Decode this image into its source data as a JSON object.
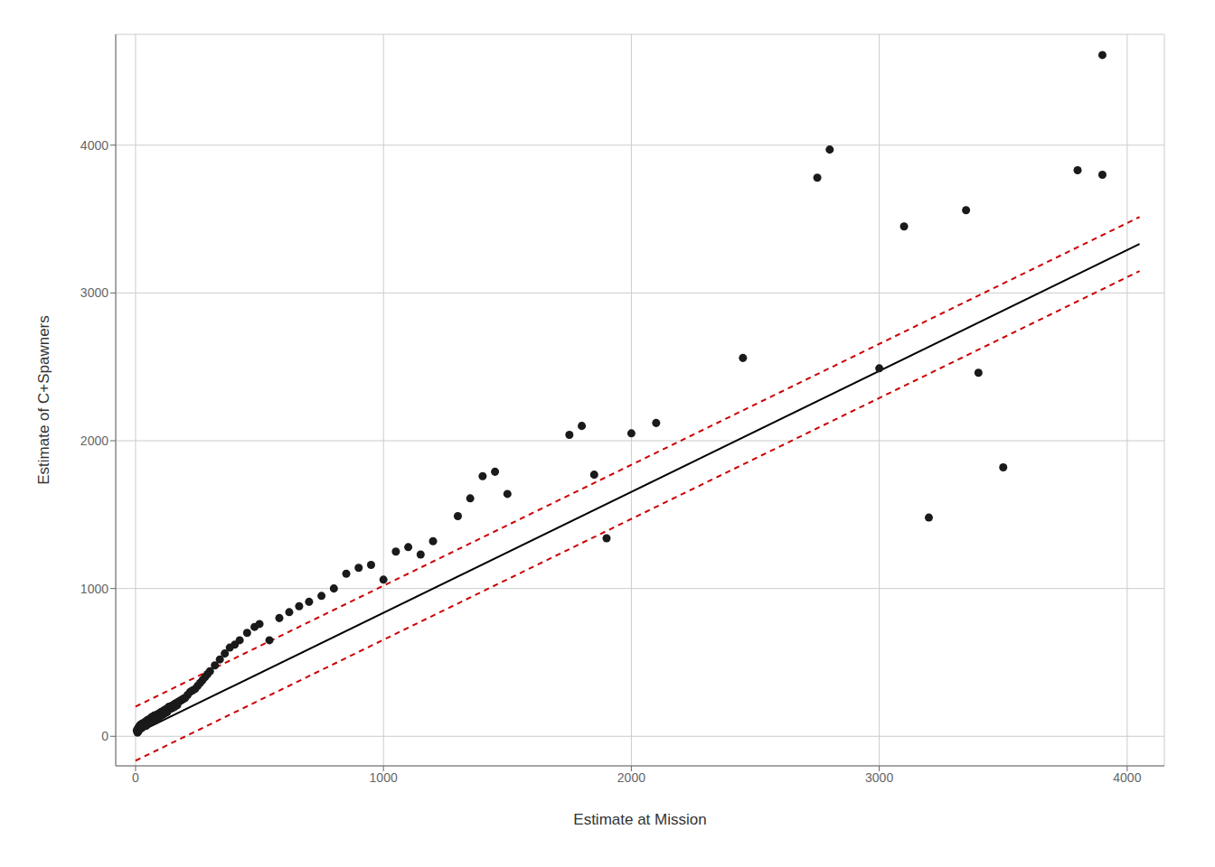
{
  "chart_data": {
    "type": "scatter",
    "xlabel": "Estimate at Mission",
    "ylabel": "Estimate of C+Spawners",
    "xlim": [
      -80,
      4150
    ],
    "ylim": [
      -200,
      4750
    ],
    "xticks": [
      0,
      1000,
      2000,
      3000,
      4000
    ],
    "yticks": [
      0,
      1000,
      2000,
      3000,
      4000
    ],
    "grid": true,
    "series": [
      {
        "type": "scatter",
        "color": "#1a1a1a",
        "x": [
          5,
          8,
          10,
          12,
          14,
          16,
          18,
          20,
          22,
          24,
          26,
          28,
          30,
          32,
          35,
          38,
          40,
          42,
          44,
          46,
          48,
          50,
          52,
          55,
          58,
          60,
          62,
          65,
          68,
          70,
          72,
          75,
          78,
          80,
          82,
          85,
          88,
          90,
          92,
          95,
          98,
          100,
          102,
          105,
          108,
          110,
          112,
          115,
          118,
          120,
          122,
          125,
          128,
          130,
          135,
          138,
          140,
          145,
          148,
          150,
          155,
          158,
          160,
          165,
          168,
          170,
          175,
          180,
          185,
          190,
          195,
          200,
          210,
          220,
          230,
          240,
          250,
          260,
          270,
          280,
          290,
          300,
          320,
          340,
          360,
          380,
          400,
          420,
          450,
          480,
          500,
          540,
          580,
          620,
          660,
          700,
          750,
          800,
          850,
          900,
          950,
          1000,
          1050,
          1100,
          1150,
          1200,
          1300,
          1350,
          1400,
          1450,
          1500,
          1750,
          1800,
          1850,
          1900,
          2000,
          2100,
          2450,
          2750,
          2800,
          3000,
          3100,
          3200,
          3350,
          3400,
          3500,
          3800,
          3900,
          3900
        ],
        "values": [
          40,
          25,
          55,
          35,
          65,
          50,
          75,
          60,
          80,
          55,
          85,
          70,
          65,
          90,
          75,
          80,
          100,
          70,
          95,
          85,
          110,
          90,
          105,
          115,
          95,
          120,
          100,
          130,
          110,
          125,
          105,
          140,
          120,
          135,
          110,
          145,
          125,
          150,
          130,
          155,
          135,
          160,
          140,
          165,
          145,
          170,
          150,
          175,
          155,
          180,
          160,
          185,
          165,
          190,
          200,
          185,
          195,
          205,
          190,
          210,
          215,
          200,
          220,
          225,
          210,
          230,
          235,
          240,
          245,
          250,
          255,
          260,
          280,
          300,
          310,
          320,
          340,
          360,
          380,
          400,
          420,
          440,
          480,
          520,
          560,
          600,
          620,
          650,
          700,
          740,
          760,
          650,
          800,
          840,
          880,
          910,
          950,
          1000,
          1100,
          1140,
          1160,
          1060,
          1250,
          1280,
          1230,
          1320,
          1490,
          1610,
          1760,
          1790,
          1640,
          2040,
          2100,
          1770,
          1340,
          2050,
          2120,
          2560,
          3780,
          3970,
          2490,
          3450,
          1480,
          3560,
          2460,
          1820,
          3830,
          3800,
          4610
        ]
      },
      {
        "type": "line",
        "color": "#000000",
        "line_style": "solid",
        "x": [
          0,
          4050
        ],
        "values": [
          18,
          3330.9
        ]
      },
      {
        "type": "line",
        "color": "#cc0000",
        "line_style": "dashed",
        "x": [
          0,
          4050
        ],
        "values": [
          201,
          3513.9
        ]
      },
      {
        "type": "line",
        "color": "#cc0000",
        "line_style": "dashed",
        "x": [
          0,
          4050
        ],
        "values": [
          -165,
          3147.9
        ]
      }
    ]
  }
}
